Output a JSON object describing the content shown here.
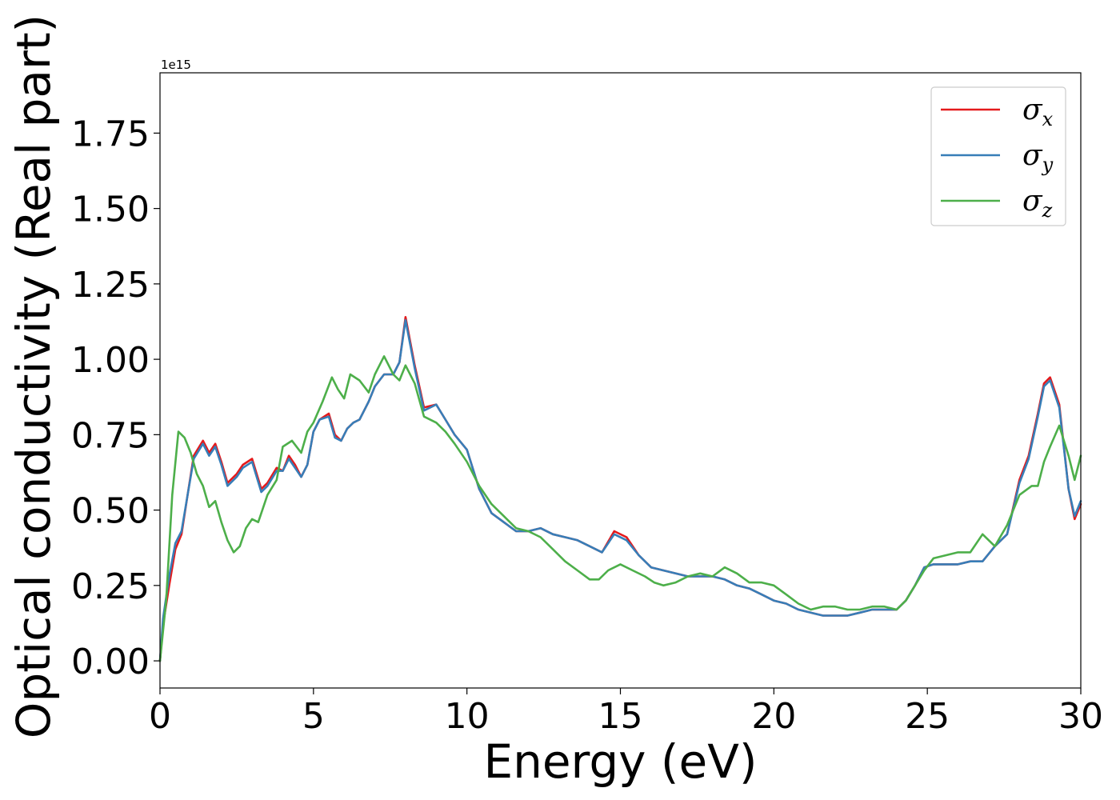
{
  "chart_data": {
    "type": "line",
    "title": "",
    "xlabel": "Energy (eV)",
    "ylabel": "Optical conductivity (Real part)",
    "y_offset_label": "1e15",
    "xlim": [
      0,
      30
    ],
    "ylim": [
      -0.09,
      1.95
    ],
    "x_ticks": [
      0,
      5,
      10,
      15,
      20,
      25,
      30
    ],
    "x_tick_labels": [
      "0",
      "5",
      "10",
      "15",
      "20",
      "25",
      "30"
    ],
    "y_ticks": [
      0.0,
      0.25,
      0.5,
      0.75,
      1.0,
      1.25,
      1.5,
      1.75
    ],
    "y_tick_labels": [
      "0.00",
      "0.25",
      "0.50",
      "0.75",
      "1.00",
      "1.25",
      "1.50",
      "1.75"
    ],
    "grid": false,
    "legend_position": "top-right",
    "series": [
      {
        "name": "σx",
        "legend_symbol": "σ",
        "legend_subscript": "x",
        "color": "#e41a1c",
        "x": [
          0,
          0.1,
          0.3,
          0.5,
          0.7,
          0.9,
          1.1,
          1.4,
          1.6,
          1.8,
          2.0,
          2.2,
          2.5,
          2.7,
          3.0,
          3.3,
          3.5,
          3.8,
          4.0,
          4.2,
          4.4,
          4.6,
          4.8,
          5.0,
          5.2,
          5.5,
          5.7,
          5.9,
          6.1,
          6.3,
          6.5,
          6.8,
          7.0,
          7.3,
          7.6,
          7.8,
          8.0,
          8.3,
          8.6,
          9.0,
          9.3,
          9.6,
          10.0,
          10.4,
          10.8,
          11.2,
          11.6,
          12.0,
          12.4,
          12.8,
          13.2,
          13.6,
          14.0,
          14.4,
          14.8,
          15.2,
          15.6,
          16.0,
          16.4,
          16.8,
          17.2,
          17.6,
          18.0,
          18.4,
          18.8,
          19.2,
          19.6,
          20.0,
          20.4,
          20.8,
          21.2,
          21.6,
          22.0,
          22.4,
          22.8,
          23.2,
          23.6,
          24.0,
          24.3,
          24.6,
          24.9,
          25.2,
          25.6,
          26.0,
          26.4,
          26.8,
          27.2,
          27.6,
          28.0,
          28.3,
          28.6,
          28.8,
          29.0,
          29.3,
          29.6,
          29.8,
          30.0
        ],
        "y": [
          0.0,
          0.12,
          0.25,
          0.37,
          0.42,
          0.55,
          0.68,
          0.73,
          0.69,
          0.72,
          0.66,
          0.59,
          0.62,
          0.65,
          0.67,
          0.57,
          0.59,
          0.64,
          0.63,
          0.68,
          0.65,
          0.61,
          0.65,
          0.76,
          0.8,
          0.82,
          0.75,
          0.73,
          0.77,
          0.79,
          0.8,
          0.86,
          0.91,
          0.95,
          0.95,
          0.99,
          1.14,
          0.98,
          0.84,
          0.85,
          0.8,
          0.75,
          0.7,
          0.57,
          0.49,
          0.46,
          0.43,
          0.43,
          0.44,
          0.42,
          0.41,
          0.4,
          0.38,
          0.36,
          0.43,
          0.41,
          0.35,
          0.31,
          0.3,
          0.29,
          0.28,
          0.28,
          0.28,
          0.27,
          0.25,
          0.24,
          0.22,
          0.2,
          0.19,
          0.17,
          0.16,
          0.15,
          0.15,
          0.15,
          0.16,
          0.17,
          0.17,
          0.17,
          0.2,
          0.25,
          0.31,
          0.32,
          0.32,
          0.32,
          0.33,
          0.33,
          0.38,
          0.42,
          0.6,
          0.68,
          0.82,
          0.92,
          0.94,
          0.85,
          0.57,
          0.47,
          0.52
        ]
      },
      {
        "name": "σy",
        "legend_symbol": "σ",
        "legend_subscript": "y",
        "color": "#377eb8",
        "x": [
          0,
          0.1,
          0.3,
          0.5,
          0.7,
          0.9,
          1.1,
          1.4,
          1.6,
          1.8,
          2.0,
          2.2,
          2.5,
          2.7,
          3.0,
          3.3,
          3.5,
          3.8,
          4.0,
          4.2,
          4.4,
          4.6,
          4.8,
          5.0,
          5.2,
          5.5,
          5.7,
          5.9,
          6.1,
          6.3,
          6.5,
          6.8,
          7.0,
          7.3,
          7.6,
          7.8,
          8.0,
          8.3,
          8.6,
          9.0,
          9.3,
          9.6,
          10.0,
          10.4,
          10.8,
          11.2,
          11.6,
          12.0,
          12.4,
          12.8,
          13.2,
          13.6,
          14.0,
          14.4,
          14.8,
          15.2,
          15.6,
          16.0,
          16.4,
          16.8,
          17.2,
          17.6,
          18.0,
          18.4,
          18.8,
          19.2,
          19.6,
          20.0,
          20.4,
          20.8,
          21.2,
          21.6,
          22.0,
          22.4,
          22.8,
          23.2,
          23.6,
          24.0,
          24.3,
          24.6,
          24.9,
          25.2,
          25.6,
          26.0,
          26.4,
          26.8,
          27.2,
          27.6,
          28.0,
          28.3,
          28.6,
          28.8,
          29.0,
          29.3,
          29.6,
          29.8,
          30.0
        ],
        "y": [
          0.0,
          0.14,
          0.28,
          0.39,
          0.43,
          0.55,
          0.67,
          0.72,
          0.68,
          0.71,
          0.65,
          0.58,
          0.61,
          0.64,
          0.66,
          0.56,
          0.58,
          0.63,
          0.63,
          0.67,
          0.64,
          0.61,
          0.65,
          0.76,
          0.8,
          0.81,
          0.74,
          0.73,
          0.77,
          0.79,
          0.8,
          0.86,
          0.91,
          0.95,
          0.95,
          0.99,
          1.13,
          0.97,
          0.83,
          0.85,
          0.8,
          0.75,
          0.7,
          0.57,
          0.49,
          0.46,
          0.43,
          0.43,
          0.44,
          0.42,
          0.41,
          0.4,
          0.38,
          0.36,
          0.42,
          0.4,
          0.35,
          0.31,
          0.3,
          0.29,
          0.28,
          0.28,
          0.28,
          0.27,
          0.25,
          0.24,
          0.22,
          0.2,
          0.19,
          0.17,
          0.16,
          0.15,
          0.15,
          0.15,
          0.16,
          0.17,
          0.17,
          0.17,
          0.2,
          0.25,
          0.31,
          0.32,
          0.32,
          0.32,
          0.33,
          0.33,
          0.38,
          0.42,
          0.59,
          0.67,
          0.81,
          0.91,
          0.93,
          0.84,
          0.57,
          0.48,
          0.53
        ]
      },
      {
        "name": "σz",
        "legend_symbol": "σ",
        "legend_subscript": "z",
        "color": "#4daf4a",
        "x": [
          0,
          0.2,
          0.4,
          0.6,
          0.8,
          1.0,
          1.2,
          1.4,
          1.6,
          1.8,
          2.0,
          2.2,
          2.4,
          2.6,
          2.8,
          3.0,
          3.2,
          3.5,
          3.8,
          4.0,
          4.3,
          4.6,
          4.8,
          5.0,
          5.3,
          5.6,
          5.8,
          6.0,
          6.2,
          6.5,
          6.8,
          7.0,
          7.3,
          7.6,
          7.8,
          8.0,
          8.3,
          8.6,
          9.0,
          9.3,
          9.6,
          10.0,
          10.4,
          10.8,
          11.2,
          11.6,
          12.0,
          12.4,
          12.8,
          13.2,
          13.6,
          14.0,
          14.3,
          14.6,
          15.0,
          15.4,
          15.8,
          16.1,
          16.4,
          16.8,
          17.2,
          17.6,
          18.0,
          18.4,
          18.8,
          19.2,
          19.6,
          20.0,
          20.4,
          20.8,
          21.2,
          21.6,
          22.0,
          22.4,
          22.8,
          23.2,
          23.6,
          24.0,
          24.3,
          24.6,
          24.9,
          25.2,
          25.6,
          26.0,
          26.4,
          26.8,
          27.2,
          27.6,
          28.0,
          28.4,
          28.6,
          28.8,
          29.0,
          29.3,
          29.6,
          29.8,
          30.0
        ],
        "y": [
          0.0,
          0.2,
          0.55,
          0.76,
          0.74,
          0.69,
          0.62,
          0.58,
          0.51,
          0.53,
          0.46,
          0.4,
          0.36,
          0.38,
          0.44,
          0.47,
          0.46,
          0.55,
          0.6,
          0.71,
          0.73,
          0.69,
          0.76,
          0.79,
          0.86,
          0.94,
          0.9,
          0.87,
          0.95,
          0.93,
          0.89,
          0.95,
          1.01,
          0.95,
          0.93,
          0.98,
          0.92,
          0.81,
          0.79,
          0.76,
          0.72,
          0.66,
          0.58,
          0.52,
          0.48,
          0.44,
          0.43,
          0.41,
          0.37,
          0.33,
          0.3,
          0.27,
          0.27,
          0.3,
          0.32,
          0.3,
          0.28,
          0.26,
          0.25,
          0.26,
          0.28,
          0.29,
          0.28,
          0.31,
          0.29,
          0.26,
          0.26,
          0.25,
          0.22,
          0.19,
          0.17,
          0.18,
          0.18,
          0.17,
          0.17,
          0.18,
          0.18,
          0.17,
          0.2,
          0.25,
          0.3,
          0.34,
          0.35,
          0.36,
          0.36,
          0.42,
          0.38,
          0.45,
          0.55,
          0.58,
          0.58,
          0.66,
          0.71,
          0.78,
          0.68,
          0.6,
          0.68
        ]
      }
    ]
  }
}
